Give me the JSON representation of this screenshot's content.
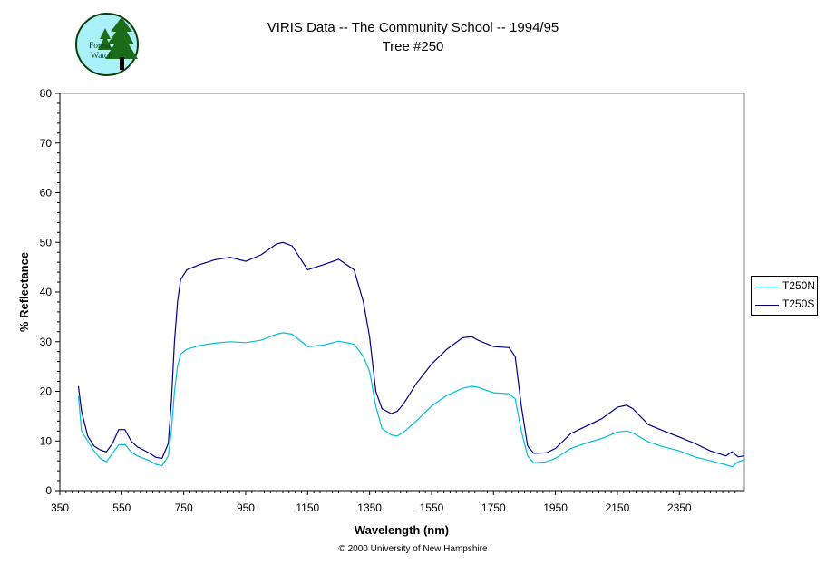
{
  "chart_data": {
    "type": "line",
    "title": "VIRIS Data -- The Community School -- 1994/95",
    "subtitle": "Tree #250",
    "xlabel": "Wavelength (nm)",
    "ylabel": "% Reflectance",
    "xlim": [
      350,
      2560
    ],
    "ylim": [
      0,
      80
    ],
    "xticks": [
      350,
      550,
      750,
      950,
      1150,
      1350,
      1550,
      1750,
      1950,
      2150,
      2350
    ],
    "yticks": [
      0,
      10,
      20,
      30,
      40,
      50,
      60,
      70,
      80
    ],
    "grid": false,
    "legend_position": "right",
    "series": [
      {
        "name": "T250N",
        "color": "#00bfd8",
        "points": [
          [
            410,
            19
          ],
          [
            420,
            12
          ],
          [
            440,
            10
          ],
          [
            460,
            8
          ],
          [
            480,
            6.5
          ],
          [
            500,
            5.8
          ],
          [
            520,
            7.5
          ],
          [
            540,
            9.2
          ],
          [
            560,
            9.3
          ],
          [
            580,
            7.8
          ],
          [
            600,
            7
          ],
          [
            620,
            6.5
          ],
          [
            640,
            6
          ],
          [
            660,
            5.3
          ],
          [
            680,
            5
          ],
          [
            700,
            7
          ],
          [
            710,
            12
          ],
          [
            720,
            20
          ],
          [
            730,
            25
          ],
          [
            740,
            27.5
          ],
          [
            760,
            28.5
          ],
          [
            800,
            29.2
          ],
          [
            850,
            29.7
          ],
          [
            900,
            30
          ],
          [
            950,
            29.8
          ],
          [
            1000,
            30.3
          ],
          [
            1050,
            31.5
          ],
          [
            1070,
            31.8
          ],
          [
            1100,
            31.5
          ],
          [
            1150,
            29
          ],
          [
            1200,
            29.3
          ],
          [
            1250,
            30.1
          ],
          [
            1300,
            29.5
          ],
          [
            1330,
            27
          ],
          [
            1350,
            24
          ],
          [
            1370,
            17
          ],
          [
            1390,
            12.5
          ],
          [
            1420,
            11.2
          ],
          [
            1440,
            11
          ],
          [
            1460,
            11.8
          ],
          [
            1500,
            14
          ],
          [
            1550,
            17
          ],
          [
            1600,
            19.2
          ],
          [
            1650,
            20.6
          ],
          [
            1680,
            21
          ],
          [
            1700,
            20.8
          ],
          [
            1750,
            19.7
          ],
          [
            1800,
            19.5
          ],
          [
            1820,
            18.5
          ],
          [
            1840,
            12
          ],
          [
            1860,
            7
          ],
          [
            1880,
            5.6
          ],
          [
            1920,
            5.8
          ],
          [
            1950,
            6.5
          ],
          [
            2000,
            8.5
          ],
          [
            2050,
            9.6
          ],
          [
            2100,
            10.5
          ],
          [
            2150,
            11.8
          ],
          [
            2180,
            12
          ],
          [
            2200,
            11.6
          ],
          [
            2250,
            9.8
          ],
          [
            2300,
            8.8
          ],
          [
            2350,
            8
          ],
          [
            2400,
            6.8
          ],
          [
            2450,
            6
          ],
          [
            2500,
            5.2
          ],
          [
            2520,
            4.8
          ],
          [
            2540,
            5.8
          ],
          [
            2560,
            6.2
          ]
        ]
      },
      {
        "name": "T250S",
        "color": "#00008b",
        "points": [
          [
            410,
            21
          ],
          [
            420,
            16
          ],
          [
            440,
            11
          ],
          [
            460,
            9
          ],
          [
            480,
            8.2
          ],
          [
            500,
            7.8
          ],
          [
            520,
            9.5
          ],
          [
            540,
            12.3
          ],
          [
            560,
            12.3
          ],
          [
            580,
            10
          ],
          [
            600,
            8.8
          ],
          [
            620,
            8.2
          ],
          [
            640,
            7.5
          ],
          [
            660,
            6.7
          ],
          [
            680,
            6.5
          ],
          [
            700,
            9.5
          ],
          [
            710,
            18
          ],
          [
            720,
            30
          ],
          [
            730,
            38
          ],
          [
            740,
            42.5
          ],
          [
            760,
            44.5
          ],
          [
            800,
            45.5
          ],
          [
            850,
            46.5
          ],
          [
            900,
            47
          ],
          [
            950,
            46.2
          ],
          [
            1000,
            47.5
          ],
          [
            1050,
            49.7
          ],
          [
            1070,
            50
          ],
          [
            1100,
            49.3
          ],
          [
            1150,
            44.5
          ],
          [
            1200,
            45.5
          ],
          [
            1250,
            46.6
          ],
          [
            1300,
            44.5
          ],
          [
            1330,
            38
          ],
          [
            1350,
            31
          ],
          [
            1370,
            20
          ],
          [
            1390,
            16.5
          ],
          [
            1420,
            15.5
          ],
          [
            1440,
            16
          ],
          [
            1460,
            17.5
          ],
          [
            1500,
            21.5
          ],
          [
            1550,
            25.5
          ],
          [
            1600,
            28.5
          ],
          [
            1650,
            30.8
          ],
          [
            1680,
            31
          ],
          [
            1700,
            30.3
          ],
          [
            1750,
            29
          ],
          [
            1800,
            28.8
          ],
          [
            1820,
            27
          ],
          [
            1840,
            17
          ],
          [
            1860,
            9
          ],
          [
            1880,
            7.5
          ],
          [
            1920,
            7.6
          ],
          [
            1950,
            8.5
          ],
          [
            2000,
            11.5
          ],
          [
            2050,
            13
          ],
          [
            2100,
            14.5
          ],
          [
            2150,
            16.8
          ],
          [
            2180,
            17.2
          ],
          [
            2200,
            16.5
          ],
          [
            2250,
            13.3
          ],
          [
            2300,
            12
          ],
          [
            2350,
            10.8
          ],
          [
            2400,
            9.5
          ],
          [
            2450,
            8
          ],
          [
            2500,
            7
          ],
          [
            2520,
            7.8
          ],
          [
            2540,
            6.8
          ],
          [
            2560,
            7
          ]
        ]
      }
    ]
  },
  "copyright": "© 2000 University of New Hampshire",
  "logo": {
    "line1": "Forest",
    "line2": "Watch",
    "bg_color": "#aaf0f8",
    "tree_color": "#1a6b1a"
  }
}
